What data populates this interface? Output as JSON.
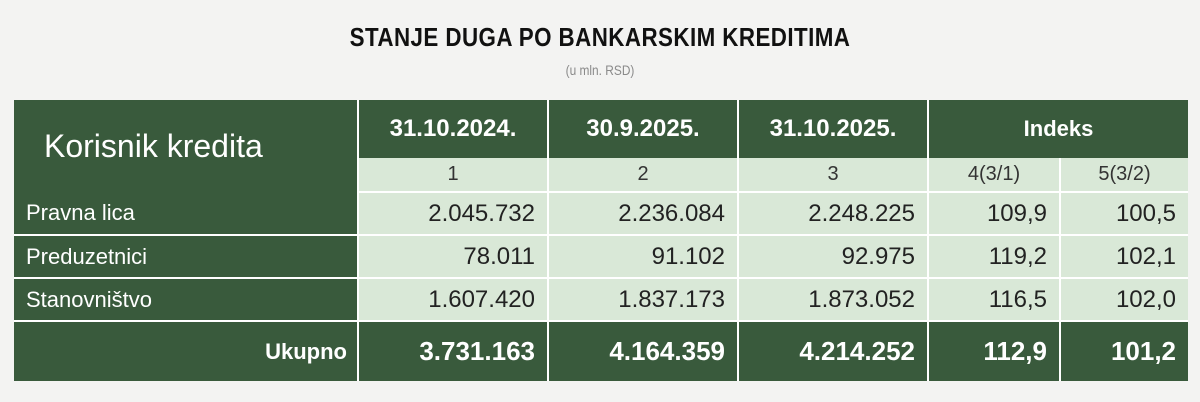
{
  "title": "STANJE DUGA PO BANKARSKIM KREDITIMA",
  "subtitle": "(u mln. RSD)",
  "table": {
    "row_header_label": "Korisnik kredita",
    "date_headers": [
      "31.10.2024.",
      "30.9.2025.",
      "31.10.2025."
    ],
    "index_header": "Indeks",
    "column_numbers": [
      "1",
      "2",
      "3",
      "4(3/1)",
      "5(3/2)"
    ],
    "rows": [
      {
        "label": "Pravna lica",
        "values": [
          "2.045.732",
          "2.236.084",
          "2.248.225",
          "109,9",
          "100,5"
        ]
      },
      {
        "label": "Preduzetnici",
        "values": [
          "78.011",
          "91.102",
          "92.975",
          "119,2",
          "102,1"
        ]
      },
      {
        "label": "Stanovništvo",
        "values": [
          "1.607.420",
          "1.837.173",
          "1.873.052",
          "116,5",
          "102,0"
        ]
      }
    ],
    "total": {
      "label": "Ukupno",
      "values": [
        "3.731.163",
        "4.164.359",
        "4.214.252",
        "112,9",
        "101,2"
      ]
    }
  },
  "colors": {
    "header_green": "#395a3c",
    "cell_light": "#d9e8d7",
    "background": "#f3f3f2"
  }
}
